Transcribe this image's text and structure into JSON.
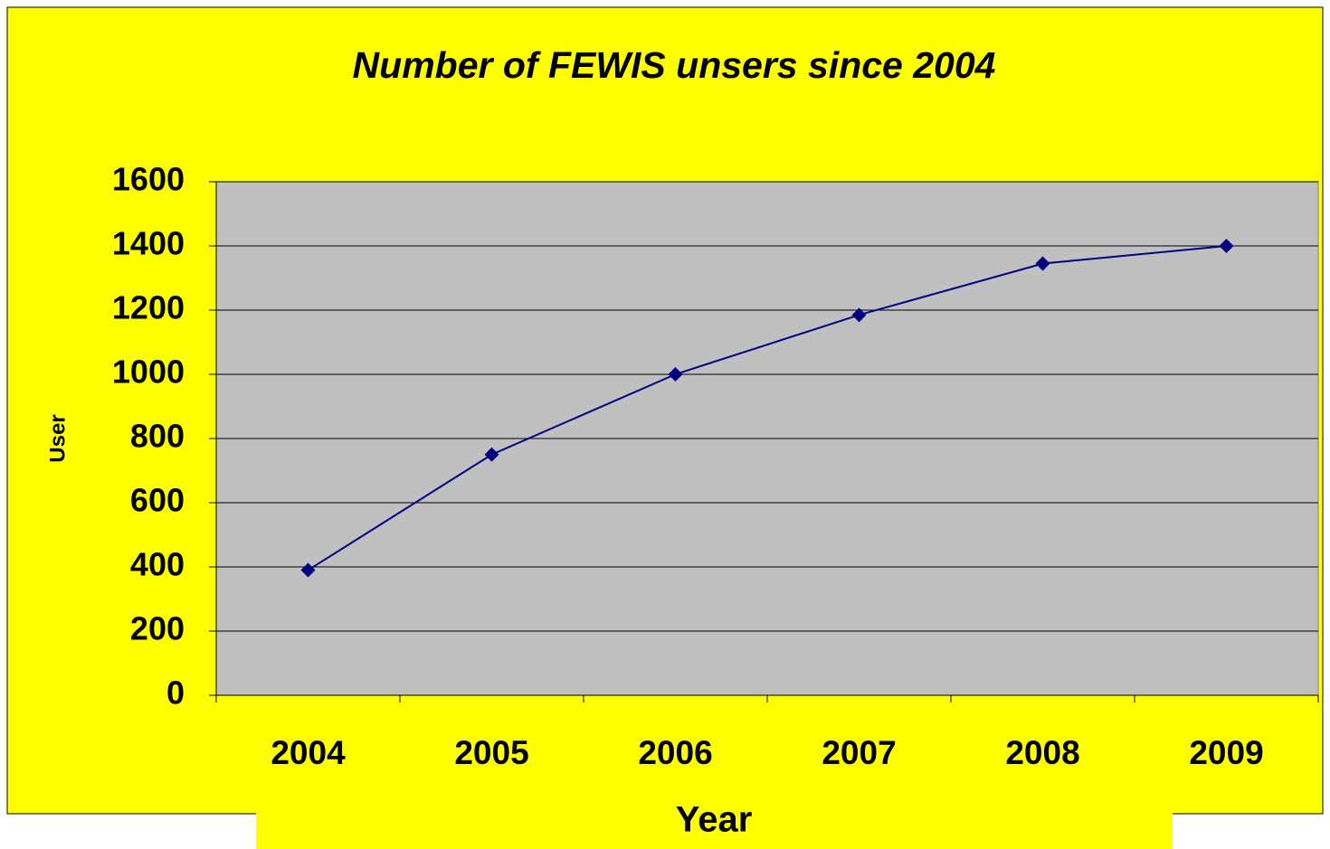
{
  "chart_data": {
    "type": "line",
    "title": "Number of FEWIS unsers since 2004",
    "x_label": "Year",
    "y_label": "User",
    "categories": [
      "2004",
      "2005",
      "2006",
      "2007",
      "2008",
      "2009"
    ],
    "series": [
      {
        "name": "User",
        "color": "#000080",
        "values": [
          390,
          750,
          1000,
          1185,
          1345,
          1400
        ]
      }
    ],
    "ylim": [
      0,
      1600
    ],
    "yticks": [
      0,
      200,
      400,
      600,
      800,
      1000,
      1200,
      1400,
      1600
    ],
    "grid": true
  }
}
